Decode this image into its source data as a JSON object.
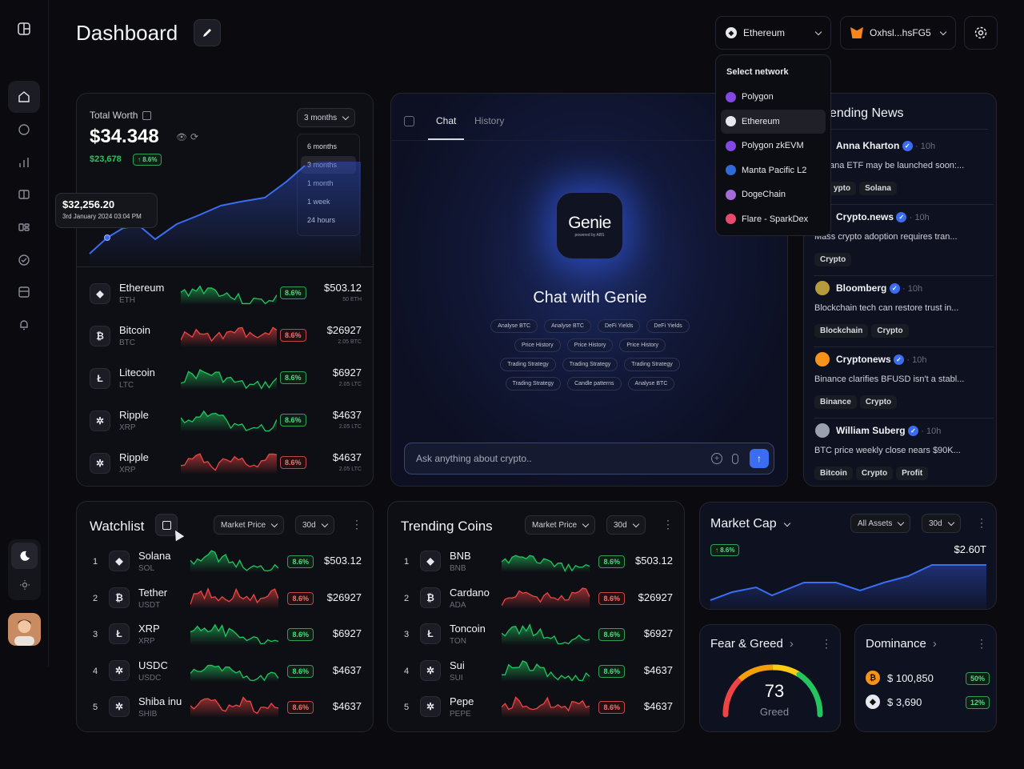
{
  "header": {
    "title": "Dashboard",
    "network": "Ethereum",
    "wallet": "Oxhsl...hsFG5"
  },
  "network_menu": {
    "title": "Select network",
    "items": [
      "Polygon",
      "Ethereum",
      "Polygon zkEVM",
      "Manta Pacific L2",
      "DogeChain",
      "Flare - SparkDex"
    ],
    "selected": "Ethereum"
  },
  "total_worth": {
    "label": "Total Worth",
    "value": "$34.348",
    "sub_value": "$23,678",
    "change": "8.6%",
    "range": "3 months",
    "range_options": [
      "6 months",
      "3 months",
      "1 month",
      "1 week",
      "24 hours"
    ],
    "tooltip_value": "$32,256.20",
    "tooltip_date": "3rd January 2024  03:04 PM",
    "assets": [
      {
        "name": "Ethereum",
        "sym": "ETH",
        "icon": "eth",
        "badge": "8.6%",
        "trend": "up",
        "price": "$503.12",
        "amount": "50 ETH"
      },
      {
        "name": "Bitcoin",
        "sym": "BTC",
        "icon": "btc",
        "badge": "8.6%",
        "trend": "down",
        "price": "$26927",
        "amount": "2.05 BTC"
      },
      {
        "name": "Litecoin",
        "sym": "LTC",
        "icon": "ltc",
        "badge": "8.6%",
        "trend": "up",
        "price": "$6927",
        "amount": "2.05 LTC"
      },
      {
        "name": "Ripple",
        "sym": "XRP",
        "icon": "xrp",
        "badge": "8.6%",
        "trend": "up",
        "price": "$4637",
        "amount": "2.05 LTC"
      },
      {
        "name": "Ripple",
        "sym": "XRP",
        "icon": "xrp",
        "badge": "8.6%",
        "trend": "down",
        "price": "$4637",
        "amount": "2.05 LTC"
      }
    ]
  },
  "chat": {
    "tabs": [
      "Chat",
      "History"
    ],
    "logo": "Genie",
    "logo_sub": "powered by ABS",
    "heading": "Chat with Genie",
    "suggestions": [
      [
        "Analyse BTC",
        "Analyse BTC",
        "DeFi Yields",
        "DeFi Yields"
      ],
      [
        "Price History",
        "Price History",
        "Price History"
      ],
      [
        "Trading Strategy",
        "Trading Strategy",
        "Trading Strategy"
      ],
      [
        "Trading Strategy",
        "Candle patterns",
        "Analyse BTC"
      ]
    ],
    "placeholder": "Ask anything about crypto.."
  },
  "news": {
    "title": "ending News",
    "items": [
      {
        "source": "Anna Kharton",
        "time": "10h",
        "text": "ana ETF may be launched soon:...",
        "tags": [
          "ypto",
          "Solana"
        ],
        "color": "#7c5cff"
      },
      {
        "source": "Crypto.news",
        "time": "10h",
        "text": "Mass crypto adoption requires tran...",
        "tags": [
          "Crypto"
        ],
        "color": "#16a34a"
      },
      {
        "source": "Bloomberg",
        "time": "10h",
        "text": "Blockchain tech can restore trust in...",
        "tags": [
          "Blockchain",
          "Crypto"
        ],
        "color": "#b59b3b"
      },
      {
        "source": "Cryptonews",
        "time": "10h",
        "text": "Binance clarifies BFUSD isn't a stabl...",
        "tags": [
          "Binance",
          "Crypto"
        ],
        "color": "#f7931a"
      },
      {
        "source": "William Suberg",
        "time": "10h",
        "text": "BTC price weekly close nears $90K...",
        "tags": [
          "Bitcoin",
          "Crypto",
          "Profit"
        ],
        "color": "#9aa0ae"
      }
    ]
  },
  "watchlist": {
    "title": "Watchlist",
    "filter": "Market Price",
    "period": "30d",
    "rows": [
      {
        "rank": "1",
        "name": "Solana",
        "sym": "SOL",
        "icon": "eth",
        "badge": "8.6%",
        "trend": "up",
        "price": "$503.12"
      },
      {
        "rank": "2",
        "name": "Tether",
        "sym": "USDT",
        "icon": "btc",
        "badge": "8.6%",
        "trend": "down",
        "price": "$26927"
      },
      {
        "rank": "3",
        "name": "XRP",
        "sym": "XRP",
        "icon": "ltc",
        "badge": "8.6%",
        "trend": "up",
        "price": "$6927"
      },
      {
        "rank": "4",
        "name": "USDC",
        "sym": "USDC",
        "icon": "xrp",
        "badge": "8.6%",
        "trend": "up",
        "price": "$4637"
      },
      {
        "rank": "5",
        "name": "Shiba inu",
        "sym": "SHIB",
        "icon": "xrp",
        "badge": "8.6%",
        "trend": "down",
        "price": "$4637"
      }
    ]
  },
  "trending": {
    "title": "Trending Coins",
    "filter": "Market Price",
    "period": "30d",
    "rows": [
      {
        "rank": "1",
        "name": "BNB",
        "sym": "BNB",
        "icon": "eth",
        "badge": "8.6%",
        "trend": "up",
        "price": "$503.12"
      },
      {
        "rank": "2",
        "name": "Cardano",
        "sym": "ADA",
        "icon": "btc",
        "badge": "8.6%",
        "trend": "down",
        "price": "$26927"
      },
      {
        "rank": "3",
        "name": "Toncoin",
        "sym": "TON",
        "icon": "ltc",
        "badge": "8.6%",
        "trend": "up",
        "price": "$6927"
      },
      {
        "rank": "4",
        "name": "Sui",
        "sym": "SUI",
        "icon": "xrp",
        "badge": "8.6%",
        "trend": "up",
        "price": "$4637"
      },
      {
        "rank": "5",
        "name": "Pepe",
        "sym": "PEPE",
        "icon": "xrp",
        "badge": "8.6%",
        "trend": "down",
        "price": "$4637"
      }
    ]
  },
  "market_cap": {
    "title": "Market Cap",
    "filter": "All Assets",
    "period": "30d",
    "change": "8.6%",
    "value": "$2.60T"
  },
  "fear_greed": {
    "title": "Fear & Greed",
    "value": "73",
    "label": "Greed",
    "fraction": 0.73
  },
  "dominance": {
    "title": "Dominance",
    "rows": [
      {
        "icon": "btc",
        "value": "$ 100,850",
        "pct": "50%",
        "color": "#f7931a"
      },
      {
        "icon": "eth",
        "value": "$ 3,690",
        "pct": "12%",
        "color": "#e8e9ee"
      }
    ]
  },
  "colors": {
    "up": "#22c55e",
    "down": "#ef4444",
    "accent": "#3b6df0"
  }
}
